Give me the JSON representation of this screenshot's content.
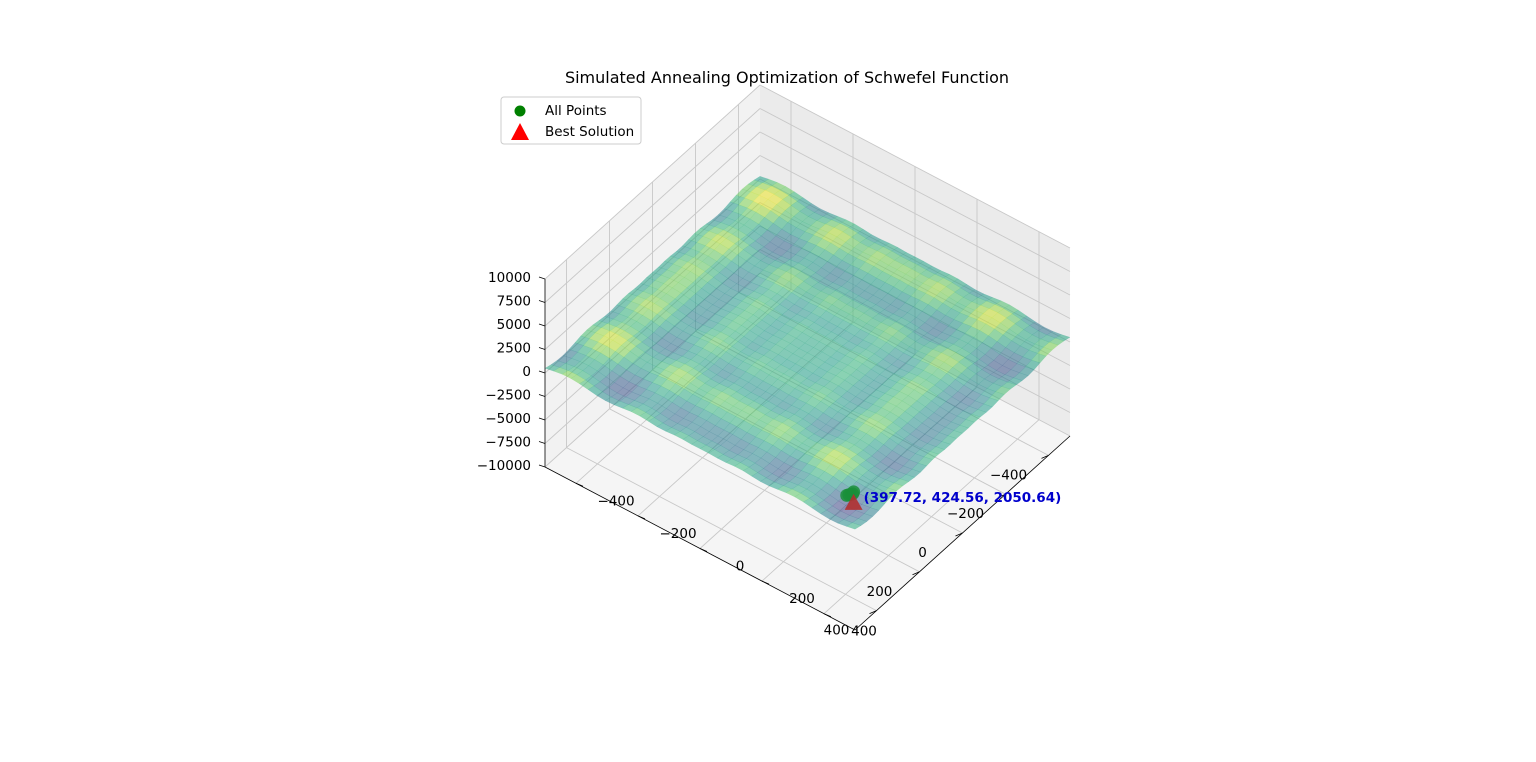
{
  "chart_data": {
    "type": "surface3d",
    "title": "Simulated Annealing Optimization of Schwefel Function",
    "x_range": [
      -500,
      500
    ],
    "y_range": [
      -500,
      500
    ],
    "z_range": [
      -10000,
      10000
    ],
    "x_ticks": [
      -400,
      -200,
      0,
      200,
      400
    ],
    "y_ticks": [
      -400,
      -200,
      0,
      200,
      400
    ],
    "z_ticks": [
      10000,
      7500,
      5000,
      2500,
      0,
      -2500,
      -5000,
      -7500,
      -10000
    ],
    "x_tick_labels": [
      "−400",
      "−200",
      "0",
      "200",
      "400"
    ],
    "y_tick_labels": [
      "−400",
      "−200",
      "0",
      "200",
      "400"
    ],
    "z_tick_labels": [
      "10000",
      "7500",
      "5000",
      "2500",
      "0",
      "−2500",
      "−5000",
      "−7500",
      "−10000"
    ],
    "grid": true,
    "colormap": "viridis",
    "surface_alpha": 0.55,
    "legend": {
      "placement": "upper-left",
      "entries": [
        {
          "label": "All Points",
          "marker": "circle",
          "color": "#008000"
        },
        {
          "label": "Best Solution",
          "marker": "triangle",
          "color": "#ff0000"
        }
      ]
    },
    "all_points": [
      [
        420.9,
        418.5,
        2050
      ],
      [
        415.3,
        421.7,
        2050
      ],
      [
        410.2,
        424.8,
        2050
      ],
      [
        405.7,
        427.1,
        2050
      ],
      [
        397.72,
        424.56,
        2050.64
      ]
    ],
    "best_solution": {
      "x": 397.72,
      "y": 424.56,
      "z": 2050.64
    },
    "annotation": {
      "text": "(397.72, 424.56, 2050.64)",
      "color": "#0000cc"
    }
  }
}
